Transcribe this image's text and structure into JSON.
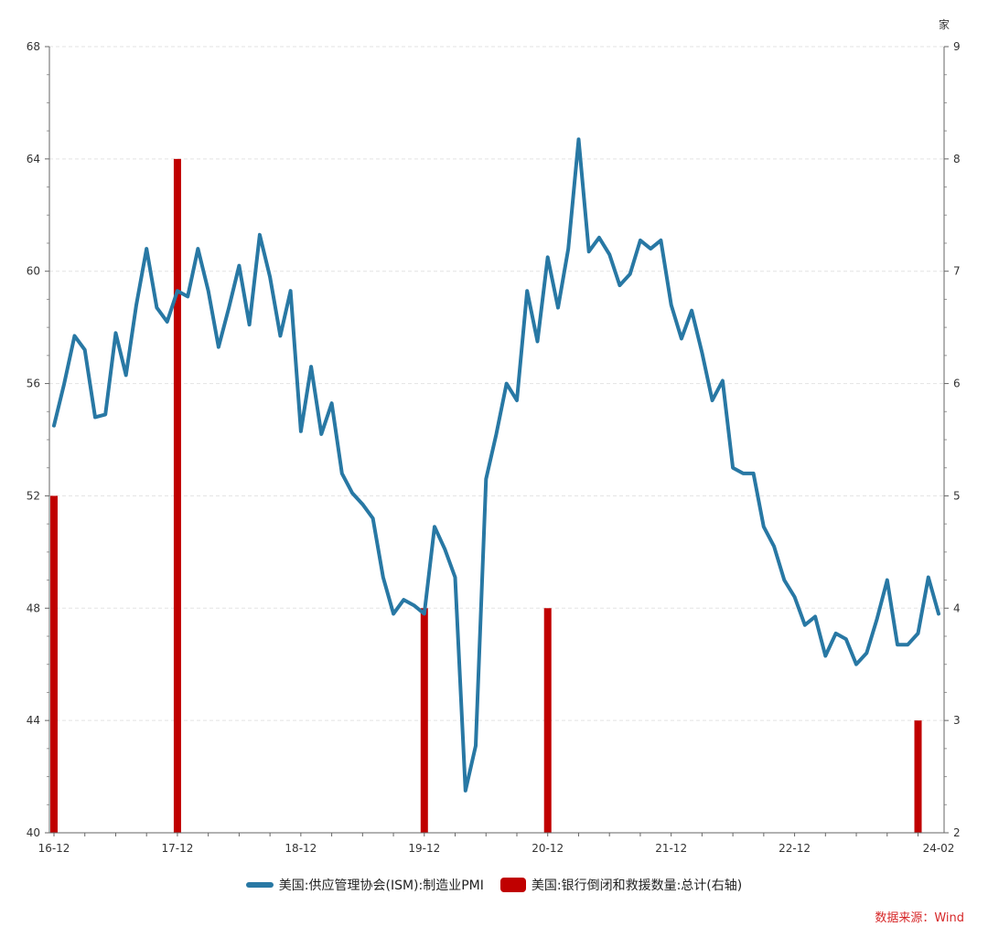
{
  "chart_data": {
    "type": "line+bar",
    "x_ticks": [
      "16-12",
      "17-12",
      "18-12",
      "19-12",
      "20-12",
      "21-12",
      "22-12",
      "24-02"
    ],
    "left_axis": {
      "ylim": [
        40,
        68
      ],
      "ticks": [
        "40",
        "44",
        "48",
        "52",
        "56",
        "60",
        "64",
        "68"
      ]
    },
    "right_axis": {
      "ylim": [
        2,
        9
      ],
      "ticks": [
        "2",
        "3",
        "4",
        "5",
        "6",
        "7",
        "8",
        "9"
      ],
      "unit": "家"
    },
    "grid": true,
    "legend_position": "bottom",
    "series": [
      {
        "name": "美国:供应管理协会(ISM):制造业PMI",
        "type": "line",
        "axis": "left",
        "color": "#2878a4",
        "x": [
          "2016-12",
          "2017-01",
          "2017-02",
          "2017-03",
          "2017-04",
          "2017-05",
          "2017-06",
          "2017-07",
          "2017-08",
          "2017-09",
          "2017-10",
          "2017-11",
          "2017-12",
          "2018-01",
          "2018-02",
          "2018-03",
          "2018-04",
          "2018-05",
          "2018-06",
          "2018-07",
          "2018-08",
          "2018-09",
          "2018-10",
          "2018-11",
          "2018-12",
          "2019-01",
          "2019-02",
          "2019-03",
          "2019-04",
          "2019-05",
          "2019-06",
          "2019-07",
          "2019-08",
          "2019-09",
          "2019-10",
          "2019-11",
          "2019-12",
          "2020-01",
          "2020-02",
          "2020-03",
          "2020-04",
          "2020-05",
          "2020-06",
          "2020-07",
          "2020-08",
          "2020-09",
          "2020-10",
          "2020-11",
          "2020-12",
          "2021-01",
          "2021-02",
          "2021-03",
          "2021-04",
          "2021-05",
          "2021-06",
          "2021-07",
          "2021-08",
          "2021-09",
          "2021-10",
          "2021-11",
          "2021-12",
          "2022-01",
          "2022-02",
          "2022-03",
          "2022-04",
          "2022-05",
          "2022-06",
          "2022-07",
          "2022-08",
          "2022-09",
          "2022-10",
          "2022-11",
          "2022-12",
          "2023-01",
          "2023-02",
          "2023-03",
          "2023-04",
          "2023-05",
          "2023-06",
          "2023-07",
          "2023-08",
          "2023-09",
          "2023-10",
          "2023-11",
          "2023-12",
          "2024-01",
          "2024-02"
        ],
        "values": [
          54.5,
          56.0,
          57.7,
          57.2,
          54.8,
          54.9,
          57.8,
          56.3,
          58.8,
          60.8,
          58.7,
          58.2,
          59.3,
          59.1,
          60.8,
          59.3,
          57.3,
          58.7,
          60.2,
          58.1,
          61.3,
          59.8,
          57.7,
          59.3,
          54.3,
          56.6,
          54.2,
          55.3,
          52.8,
          52.1,
          51.7,
          51.2,
          49.1,
          47.8,
          48.3,
          48.1,
          47.8,
          50.9,
          50.1,
          49.1,
          41.5,
          43.1,
          52.6,
          54.2,
          56.0,
          55.4,
          59.3,
          57.5,
          60.5,
          58.7,
          60.8,
          64.7,
          60.7,
          61.2,
          60.6,
          59.5,
          59.9,
          61.1,
          60.8,
          61.1,
          58.8,
          57.6,
          58.6,
          57.1,
          55.4,
          56.1,
          53.0,
          52.8,
          52.8,
          50.9,
          50.2,
          49.0,
          48.4,
          47.4,
          47.7,
          46.3,
          47.1,
          46.9,
          46.0,
          46.4,
          47.6,
          49.0,
          46.7,
          46.7,
          47.1,
          49.1,
          47.8
        ]
      },
      {
        "name": "美国:银行倒闭和救援数量:总计(右轴)",
        "type": "bar",
        "axis": "right",
        "color": "#c00000",
        "x": [
          "2016-12",
          "2017-12",
          "2019-12",
          "2020-12",
          "2023-12"
        ],
        "values": [
          5,
          8,
          4,
          4,
          3
        ]
      }
    ]
  },
  "source": {
    "text": "数据来源：Wind",
    "color": "#d62728"
  }
}
